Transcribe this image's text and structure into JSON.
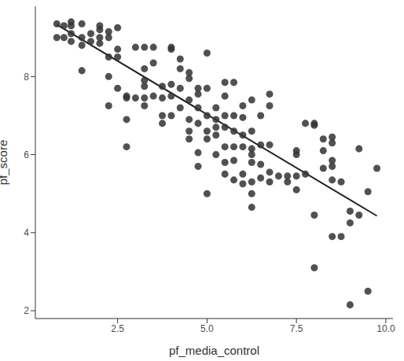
{
  "chart_data": {
    "type": "scatter",
    "x_label": "pf_media_control",
    "y_label": "pf_score",
    "color": "#333333",
    "marker": "circle",
    "grid": false,
    "xlim": [
      0.2,
      10.2
    ],
    "ylim": [
      1.8,
      9.8
    ],
    "xticks": [
      2.5,
      {
        "value": 5,
        "label": "5.0"
      },
      7.5,
      {
        "value": 10,
        "label": "10.0"
      }
    ],
    "yticks": [
      2,
      4,
      6,
      8
    ],
    "x": [
      0.8,
      0.8,
      1.0,
      1.0,
      1.2,
      1.2,
      1.2,
      1.2,
      1.5,
      1.5,
      1.5,
      1.5,
      1.75,
      1.75,
      2.0,
      2.0,
      2.0,
      2.0,
      2.25,
      2.25,
      2.25,
      2.25,
      2.25,
      2.5,
      2.5,
      2.5,
      2.5,
      2.75,
      2.75,
      2.75,
      2.75,
      3.0,
      3.0,
      3.25,
      3.25,
      3.25,
      3.25,
      3.25,
      3.25,
      3.5,
      3.5,
      3.5,
      3.75,
      3.75,
      3.75,
      3.75,
      4.0,
      4.0,
      4.0,
      4.0,
      4.0,
      4.25,
      4.25,
      4.25,
      4.25,
      4.5,
      4.5,
      4.5,
      4.5,
      4.5,
      4.5,
      4.75,
      4.75,
      4.75,
      4.75,
      4.75,
      4.75,
      5.0,
      5.0,
      5.0,
      5.0,
      5.0,
      5.0,
      5.25,
      5.25,
      5.25,
      5.25,
      5.25,
      5.5,
      5.5,
      5.5,
      5.5,
      5.5,
      5.5,
      5.5,
      5.75,
      5.75,
      5.75,
      5.75,
      5.75,
      5.75,
      6.0,
      6.0,
      6.0,
      6.0,
      6.0,
      6.0,
      6.25,
      6.25,
      6.25,
      6.25,
      6.25,
      6.25,
      6.25,
      6.25,
      6.5,
      6.5,
      6.5,
      6.5,
      6.75,
      6.75,
      6.75,
      6.75,
      6.75,
      7.0,
      7.25,
      7.25,
      7.5,
      7.5,
      7.5,
      7.5,
      7.75,
      7.75,
      8.0,
      8.0,
      8.0,
      8.0,
      8.25,
      8.25,
      8.25,
      8.5,
      8.5,
      8.5,
      8.5,
      8.5,
      8.5,
      8.75,
      8.75,
      9.0,
      9.0,
      9.0,
      9.25,
      9.25,
      9.5,
      9.5,
      9.75
    ],
    "values": [
      9.35,
      9.0,
      9.3,
      9.0,
      9.4,
      9.3,
      9.1,
      8.9,
      9.35,
      9.0,
      8.8,
      8.15,
      9.1,
      8.9,
      9.3,
      9.2,
      9.0,
      8.85,
      9.15,
      9.0,
      8.5,
      8.0,
      7.25,
      9.25,
      8.7,
      8.5,
      7.7,
      7.5,
      7.45,
      6.9,
      6.2,
      8.75,
      7.45,
      8.75,
      8.2,
      7.9,
      7.75,
      7.45,
      7.25,
      8.75,
      8.35,
      7.5,
      7.75,
      7.45,
      7.0,
      6.8,
      8.75,
      8.7,
      7.8,
      7.5,
      7.0,
      8.45,
      8.2,
      7.7,
      7.2,
      8.1,
      7.95,
      7.4,
      6.9,
      6.6,
      6.4,
      7.7,
      7.55,
      7.2,
      6.8,
      6.05,
      5.7,
      8.6,
      7.7,
      7.0,
      6.6,
      6.4,
      5.0,
      7.2,
      6.9,
      6.7,
      6.5,
      6.0,
      7.85,
      7.5,
      7.0,
      6.7,
      6.2,
      5.8,
      5.5,
      7.85,
      7.0,
      6.6,
      6.2,
      5.85,
      5.35,
      7.25,
      6.95,
      6.5,
      6.2,
      5.5,
      5.25,
      7.4,
      6.6,
      6.15,
      6.0,
      5.8,
      5.3,
      5.0,
      4.65,
      7.0,
      6.25,
      5.75,
      5.4,
      7.55,
      7.25,
      6.25,
      5.55,
      5.3,
      5.45,
      5.45,
      5.3,
      6.1,
      6.0,
      5.45,
      5.1,
      6.8,
      5.5,
      6.8,
      6.75,
      4.45,
      3.1,
      6.4,
      6.1,
      5.65,
      6.45,
      6.3,
      5.85,
      5.35,
      5.7,
      3.9,
      5.3,
      3.9,
      4.55,
      4.25,
      2.15,
      6.15,
      4.45,
      5.05,
      2.5,
      5.65
    ],
    "trend_line": {
      "x": [
        0.8,
        9.75
      ],
      "values": [
        9.33,
        4.43
      ],
      "color": "#222222"
    }
  }
}
